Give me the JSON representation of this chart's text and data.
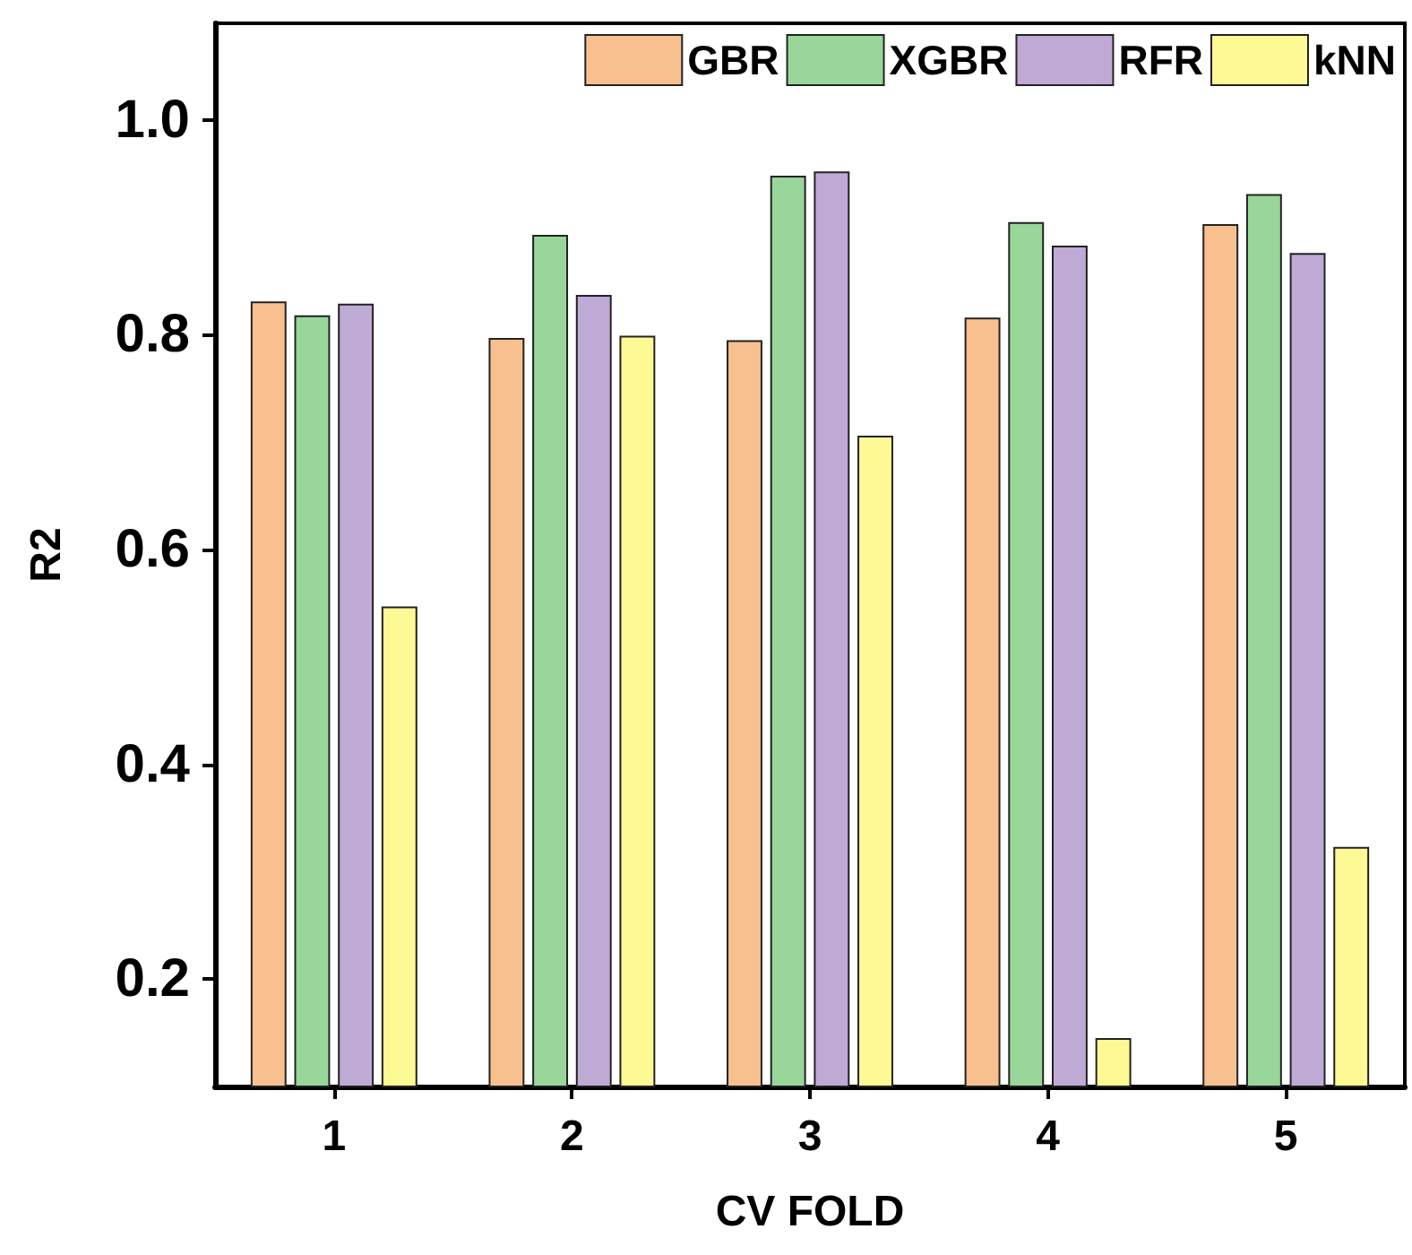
{
  "chart_data": {
    "type": "bar",
    "xlabel": "CV FOLD",
    "ylabel": "R2",
    "categories": [
      "1",
      "2",
      "3",
      "4",
      "5"
    ],
    "series": [
      {
        "name": "GBR",
        "color": "#f9c08f",
        "values": [
          0.831,
          0.797,
          0.795,
          0.816,
          0.903
        ]
      },
      {
        "name": "XGBR",
        "color": "#98d69a",
        "values": [
          0.818,
          0.893,
          0.948,
          0.905,
          0.931
        ]
      },
      {
        "name": "RFR",
        "color": "#bfaad6",
        "values": [
          0.829,
          0.837,
          0.952,
          0.883,
          0.876
        ]
      },
      {
        "name": "kNN",
        "color": "#fdf994",
        "values": [
          0.547,
          0.799,
          0.706,
          0.145,
          0.323
        ]
      }
    ],
    "ylim": [
      0.1,
      1.09
    ],
    "yticks": [
      {
        "value": 0.2,
        "label": "0.2"
      },
      {
        "value": 0.4,
        "label": "0.4"
      },
      {
        "value": 0.6,
        "label": "0.6"
      },
      {
        "value": 0.8,
        "label": "0.8"
      },
      {
        "value": 1,
        "label": "1.0"
      }
    ],
    "grid": false,
    "legend": "top right"
  }
}
